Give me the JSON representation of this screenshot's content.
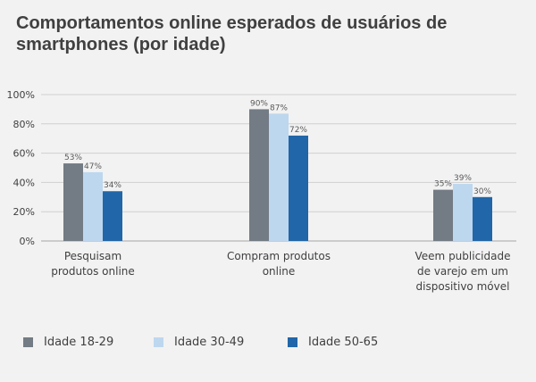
{
  "chart_data": {
    "type": "bar",
    "title": "Comportamentos online esperados de usuários de smartphones (por idade)",
    "categories": [
      [
        "Pesquisam",
        "produtos online"
      ],
      [
        "Compram produtos",
        "online"
      ],
      [
        "Veem publicidade",
        "de varejo em um",
        "dispositivo móvel"
      ]
    ],
    "series": [
      {
        "name": "Idade 18-29",
        "color": "#737b84",
        "values": [
          53,
          90,
          35
        ]
      },
      {
        "name": "Idade 30-49",
        "color": "#bdd7ee",
        "values": [
          47,
          87,
          39
        ]
      },
      {
        "name": "Idade 50-65",
        "color": "#2166a8",
        "values": [
          34,
          72,
          30
        ]
      }
    ],
    "ylim": [
      0,
      100
    ],
    "yticks": [
      0,
      20,
      40,
      60,
      80,
      100
    ],
    "ytick_labels": [
      "0%",
      "20%",
      "40%",
      "60%",
      "80%",
      "100%"
    ],
    "data_label_suffix": "%",
    "grid": true,
    "legend_position": "bottom"
  }
}
